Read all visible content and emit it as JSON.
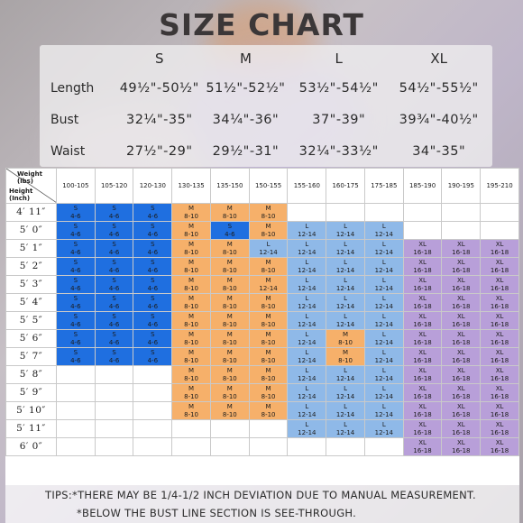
{
  "title": "SIZE CHART",
  "top_table": {
    "sizes": [
      "S",
      "M",
      "L",
      "XL"
    ],
    "rows": [
      {
        "label": "Length",
        "values": [
          "49½\"-50½\"",
          "51½\"-52½\"",
          "53½\"-54½\"",
          "54½\"-55½\""
        ]
      },
      {
        "label": "Bust",
        "values": [
          "32¼\"-35\"",
          "34¼\"-36\"",
          "37\"-39\"",
          "39¾\"-40½\""
        ]
      },
      {
        "label": "Waist",
        "values": [
          "27½\"-29\"",
          "29½\"-31\"",
          "32¼\"-33½\"",
          "34\"-35\""
        ]
      }
    ]
  },
  "grid": {
    "corner_weight": "Weight\n(lbs)",
    "corner_height": "Height\n(Inch)",
    "weight_ranges": [
      "100-105",
      "105-120",
      "120-130",
      "130-135",
      "135-150",
      "150-155",
      "155-160",
      "160-175",
      "175-185",
      "185-190",
      "190-195",
      "195-210"
    ],
    "heights": [
      "4′ 11″",
      "5′ 0″",
      "5′ 1″",
      "5′ 2″",
      "5′ 3″",
      "5′ 4″",
      "5′ 5″",
      "5′ 6″",
      "5′ 7″",
      "5′ 8″",
      "5′ 9″",
      "5′ 10″",
      "5′ 11″",
      "6′ 0″"
    ],
    "size_colors": {
      "S": "#1f6fe0",
      "M": "#f6b06a",
      "L": "#8fb9e8",
      "XL": "#b89fd9"
    },
    "rows": [
      [
        "S|4-6",
        "S|4-6",
        "S|4-6",
        "M|8-10|r",
        "M|8-10",
        "M|8-10",
        "",
        "",
        "",
        "",
        "",
        ""
      ],
      [
        "S|4-6",
        "S|4-6|r",
        "S|4-6",
        "M|8-10",
        "S|4-6|r",
        "M|8-10",
        "L|12-14",
        "L|12-14",
        "L|12-14",
        "",
        "",
        ""
      ],
      [
        "S|4-6|r",
        "S|4-6",
        "S|4-6",
        "M|8-10",
        "M|8-10",
        "L|12-14|r",
        "L|12-14",
        "L|12-14",
        "L|12-14",
        "XL|16-18",
        "XL|16-18",
        "XL|16-18"
      ],
      [
        "S|4-6",
        "S|4-6",
        "S|4-6",
        "M|8-10",
        "M|8-10",
        "M|8-10",
        "L|12-14|r",
        "L|12-14",
        "L|12-14",
        "XL|16-18",
        "XL|16-18",
        "XL|16-18"
      ],
      [
        "S|4-6",
        "S|4-6",
        "S|4-6",
        "M|8-10|r",
        "M|8-10",
        "M|12-14|r",
        "L|12-14",
        "L|12-14",
        "L|12-14",
        "XL|16-18",
        "XL|16-18|r",
        "XL|16-18"
      ],
      [
        "S|4-6",
        "S|4-6",
        "S|4-6|r",
        "M|8-10",
        "M|8-10",
        "M|8-10",
        "L|12-14",
        "L|12-14",
        "L|12-14|r",
        "XL|16-18",
        "XL|16-18",
        "XL|16-18"
      ],
      [
        "S|4-6",
        "S|4-6",
        "S|4-6",
        "M|8-10",
        "M|8-10",
        "M|8-10|r",
        "L|12-14",
        "L|12-14",
        "L|12-14|r",
        "XL|16-18",
        "XL|16-18|r",
        "XL|16-18"
      ],
      [
        "S|4-6",
        "S|4-6",
        "S|4-6",
        "M|8-10",
        "M|8-10",
        "M|8-10",
        "L|12-14",
        "M|8-10|r",
        "L|12-14",
        "XL|16-18",
        "XL|16-18",
        "XL|16-18"
      ],
      [
        "S|4-6",
        "S|4-6",
        "S|4-6",
        "M|8-10",
        "M|8-10",
        "M|8-10",
        "L|12-14",
        "M|8-10|r",
        "L|12-14",
        "XL|16-18",
        "XL|16-18",
        "XL|16-18"
      ],
      [
        "",
        "",
        "",
        "M|8-10",
        "M|8-10",
        "M|8-10",
        "L|12-14",
        "L|12-14",
        "L|12-14",
        "XL|16-18",
        "XL|16-18",
        "XL|16-18"
      ],
      [
        "",
        "",
        "",
        "M|8-10",
        "M|8-10",
        "M|8-10",
        "L|12-14",
        "L|12-14|r",
        "L|12-14",
        "XL|16-18",
        "XL|16-18",
        "XL|16-18"
      ],
      [
        "",
        "",
        "",
        "M|8-10|r",
        "M|8-10",
        "M|8-10",
        "L|12-14",
        "L|12-14|r",
        "L|12-14",
        "XL|16-18",
        "XL|16-18",
        "XL|16-18"
      ],
      [
        "",
        "",
        "",
        "",
        "",
        "",
        "L|12-14",
        "L|12-14",
        "L|12-14",
        "XL|16-18",
        "XL|16-18",
        "XL|16-18"
      ],
      [
        "",
        "",
        "",
        "",
        "",
        "",
        "",
        "",
        "",
        "XL|16-18",
        "XL|16-18",
        "XL|16-18"
      ]
    ]
  },
  "tips": {
    "line1": "TIPS:*THERE MAY BE 1/4-1/2 INCH DEVIATION DUE TO MANUAL MEASUREMENT.",
    "line2": "*BELOW THE BUST LINE SECTION IS SEE-THROUGH."
  }
}
